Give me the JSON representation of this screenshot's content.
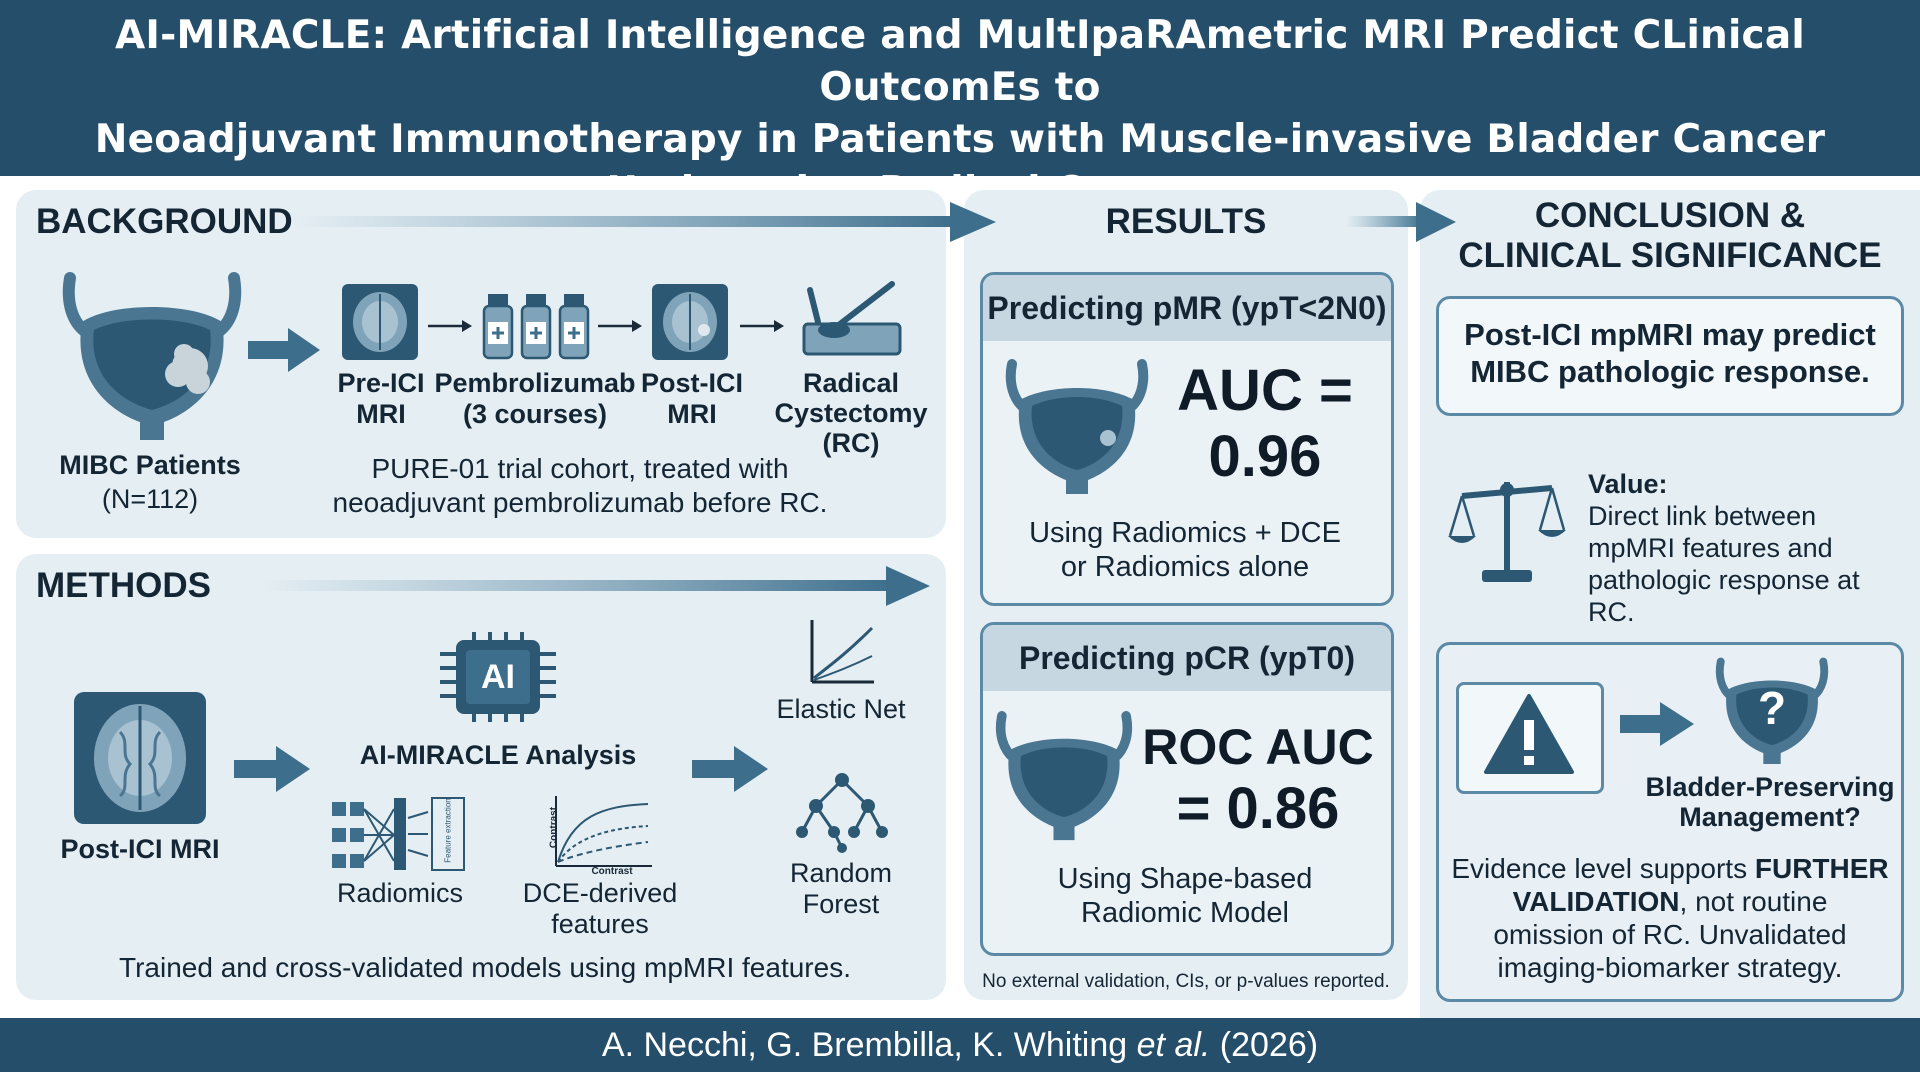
{
  "header": {
    "title_line1": "AI-MIRACLE: Artificial Intelligence and MultIpaRAmetric MRI Predict CLinical OutcomEs to",
    "title_line2": "Neoadjuvant Immunotherapy in Patients with Muscle-invasive Bladder Cancer",
    "title_line3": "Undergoing Radical Cystectomy"
  },
  "background": {
    "heading": "BACKGROUND",
    "patients_label": "MIBC Patients",
    "patients_n": "(N=112)",
    "steps": [
      {
        "line1": "Pre-ICI",
        "line2": "MRI",
        "line3": ""
      },
      {
        "line1": "Pembrolizumab",
        "line2": "(3 courses)",
        "line3": ""
      },
      {
        "line1": "Post-ICI",
        "line2": "MRI",
        "line3": ""
      },
      {
        "line1": "Radical",
        "line2": "Cystectomy",
        "line3": "(RC)"
      }
    ],
    "cohort_line1": "PURE-01 trial cohort, treated with",
    "cohort_line2": "neoadjuvant pembrolizumab before RC."
  },
  "methods": {
    "heading": "METHODS",
    "mri_label": "Post-ICI MRI",
    "ai_chip": "AI",
    "analysis_label": "AI-MIRACLE Analysis",
    "radiomics_label": "Radiomics",
    "feature_extraction_tiny": "Feature extraction",
    "dce_label_line1": "DCE-derived",
    "dce_label_line2": "features",
    "dce_axis_y": "Contrast",
    "dce_axis_x": "Contrast",
    "elastic_net": "Elastic Net",
    "random_forest_line1": "Random",
    "random_forest_line2": "Forest",
    "summary": "Trained and cross-validated models using mpMRI features."
  },
  "results": {
    "heading": "RESULTS",
    "pmr": {
      "title": "Predicting pMR (ypT<2N0)",
      "metric_line1": "AUC =",
      "metric_line2": "0.96",
      "note_line1": "Using Radiomics + DCE",
      "note_line2": "or Radiomics alone"
    },
    "pcr": {
      "title": "Predicting pCR (ypT0)",
      "metric_line1": "ROC AUC",
      "metric_line2": "= 0.86",
      "note_line1": "Using Shape-based",
      "note_line2": "Radiomic Model"
    },
    "footnote": "No external validation, CIs, or p-values reported."
  },
  "conclusion": {
    "heading_line1": "CONCLUSION &",
    "heading_line2": "CLINICAL SIGNIFICANCE",
    "key_line1": "Post-ICI mpMRI may predict",
    "key_line2": "MIBC pathologic response.",
    "value_title": "Value:",
    "value_line1": "Direct link between",
    "value_line2": "mpMRI features and",
    "value_line3": "pathologic response at",
    "value_line4": "RC.",
    "bpm_line1": "Bladder-Preserving",
    "bpm_line2": "Management?",
    "question_mark": "?",
    "evidence_pre": "Evidence level supports ",
    "evidence_bold1": "FURTHER",
    "evidence_bold2": "VALIDATION",
    "evidence_mid": ", not routine",
    "evidence_line3": "omission of RC. Unvalidated",
    "evidence_line4": "imaging-biomarker strategy."
  },
  "footer": {
    "authors": "A. Necchi, G. Brembilla, K. Whiting ",
    "etal": "et al.",
    "year": " (2026)"
  },
  "colors": {
    "header_bg": "#254e6a",
    "panel_bg": "#e5eef3",
    "accent": "#3d6e8c",
    "card_border": "#5c8aa6"
  }
}
